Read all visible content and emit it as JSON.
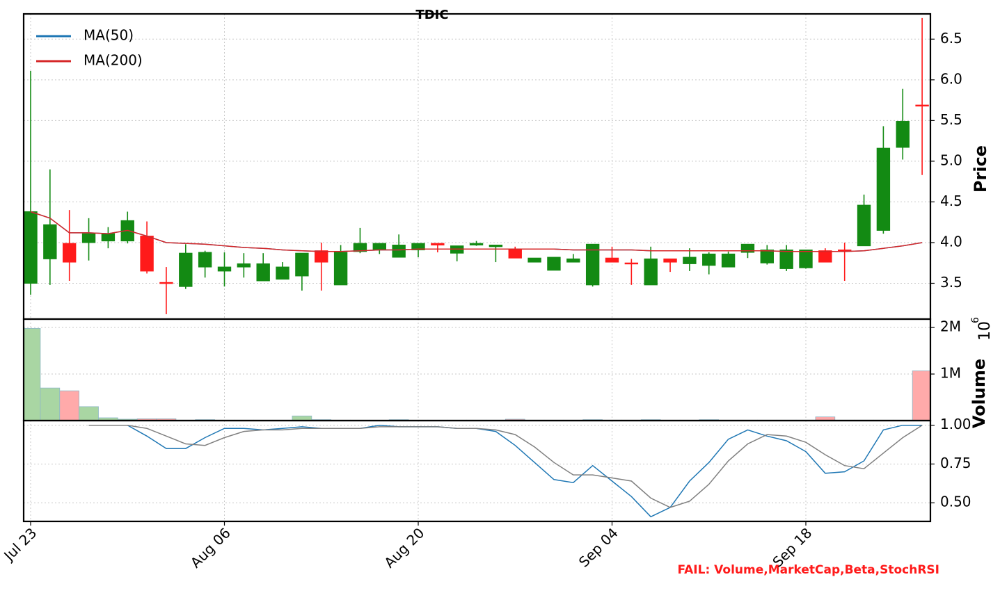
{
  "chart_data": [
    {
      "type": "candlestick",
      "title": "TDIC",
      "ylabel": "Price",
      "categories": [
        "Jul 23",
        null,
        null,
        null,
        null,
        null,
        null,
        null,
        null,
        null,
        "Aug 06",
        null,
        null,
        null,
        null,
        null,
        null,
        null,
        null,
        null,
        "Aug 20",
        null,
        null,
        null,
        null,
        null,
        null,
        null,
        null,
        null,
        "Sep 04",
        null,
        null,
        null,
        null,
        null,
        null,
        null,
        null,
        null,
        "Sep 18",
        null,
        null,
        null,
        null,
        null,
        null
      ],
      "open": [
        3.5,
        3.8,
        3.99,
        4.0,
        4.02,
        4.02,
        4.08,
        3.51,
        3.46,
        3.7,
        3.65,
        3.7,
        3.53,
        3.55,
        3.59,
        3.9,
        3.48,
        3.89,
        3.91,
        3.82,
        3.91,
        3.99,
        3.87,
        3.97,
        3.95,
        3.91,
        3.76,
        3.66,
        3.76,
        3.48,
        3.81,
        3.75,
        3.48,
        3.8,
        3.74,
        3.72,
        3.7,
        3.88,
        3.75,
        3.68,
        3.69,
        3.9,
        3.91,
        3.96,
        4.15,
        5.17,
        5.69
      ],
      "high": [
        6.11,
        4.9,
        4.4,
        4.3,
        4.19,
        4.38,
        4.26,
        3.7,
        3.98,
        3.9,
        3.88,
        3.87,
        3.87,
        3.76,
        3.87,
        4.0,
        3.97,
        4.18,
        3.99,
        4.1,
        3.99,
        3.99,
        3.96,
        4.02,
        3.97,
        3.95,
        3.81,
        3.82,
        3.86,
        3.98,
        3.95,
        3.8,
        3.95,
        3.8,
        3.93,
        3.88,
        3.89,
        3.98,
        3.97,
        3.97,
        3.91,
        3.93,
        4.0,
        4.59,
        5.43,
        5.89,
        6.76
      ],
      "low": [
        3.36,
        3.48,
        3.53,
        3.78,
        3.93,
        3.99,
        3.62,
        3.12,
        3.43,
        3.57,
        3.46,
        3.57,
        3.53,
        3.55,
        3.41,
        3.41,
        3.48,
        3.87,
        3.86,
        3.82,
        3.82,
        3.88,
        3.77,
        3.96,
        3.76,
        3.81,
        3.76,
        3.66,
        3.76,
        3.46,
        3.76,
        3.48,
        3.48,
        3.64,
        3.65,
        3.61,
        3.7,
        3.81,
        3.73,
        3.65,
        3.68,
        3.76,
        3.53,
        3.96,
        4.11,
        5.02,
        4.83
      ],
      "close": [
        4.38,
        4.22,
        3.76,
        4.11,
        4.11,
        4.27,
        3.65,
        3.5,
        3.87,
        3.88,
        3.7,
        3.74,
        3.74,
        3.7,
        3.87,
        3.76,
        3.88,
        3.99,
        3.99,
        3.97,
        3.99,
        3.97,
        3.96,
        3.99,
        3.97,
        3.81,
        3.81,
        3.82,
        3.8,
        3.98,
        3.76,
        3.74,
        3.8,
        3.76,
        3.82,
        3.86,
        3.86,
        3.98,
        3.91,
        3.91,
        3.91,
        3.76,
        3.9,
        4.46,
        5.16,
        5.49,
        5.68
      ],
      "up_color": "#138a13",
      "down_color": "#ff1a1a",
      "series": [
        {
          "name": "MA(50)",
          "color": "#1f77b4",
          "values": [
            4.38,
            4.3,
            4.12,
            4.12,
            4.11,
            4.15,
            4.08,
            4.0,
            3.99,
            3.98,
            3.96,
            3.94,
            3.93,
            3.91,
            3.9,
            3.89,
            3.89,
            3.9,
            3.91,
            3.91,
            3.92,
            3.92,
            3.92,
            3.92,
            3.92,
            3.92,
            3.92,
            3.92,
            3.91,
            3.91,
            3.91,
            3.91,
            3.9,
            3.9,
            3.9,
            3.9,
            3.9,
            3.9,
            3.9,
            3.89,
            3.89,
            3.89,
            3.89,
            3.9,
            3.93,
            3.96,
            4.0
          ]
        },
        {
          "name": "MA(200)",
          "color": "#d62728",
          "values": [
            4.38,
            4.3,
            4.12,
            4.12,
            4.11,
            4.15,
            4.08,
            4.0,
            3.99,
            3.98,
            3.96,
            3.94,
            3.93,
            3.91,
            3.9,
            3.89,
            3.89,
            3.9,
            3.91,
            3.91,
            3.92,
            3.92,
            3.92,
            3.92,
            3.92,
            3.92,
            3.92,
            3.92,
            3.91,
            3.91,
            3.91,
            3.91,
            3.9,
            3.9,
            3.9,
            3.9,
            3.9,
            3.9,
            3.9,
            3.89,
            3.89,
            3.89,
            3.89,
            3.9,
            3.93,
            3.96,
            4.0
          ]
        }
      ],
      "ylim": [
        3.06,
        6.81
      ],
      "yticks": [
        3.5,
        {
          "value": 4,
          "label": "4.0"
        },
        4.5,
        {
          "value": 5,
          "label": "5.0"
        },
        5.5,
        {
          "value": 6,
          "label": "6.0"
        },
        6.5
      ],
      "grid": true,
      "legend": "upper left",
      "annotation": "FAIL: Volume,MarketCap,Beta,StochRSI"
    },
    {
      "type": "bar",
      "ylabel": "Volume",
      "offset_text": "10",
      "offset_exponent": "6",
      "values": [
        1980000,
        700000,
        640000,
        300000,
        60000,
        30000,
        40000,
        40000,
        10000,
        20000,
        10000,
        10000,
        10000,
        10000,
        100000,
        20000,
        10000,
        10000,
        10000,
        20000,
        10000,
        10000,
        10000,
        10000,
        10000,
        30000,
        10000,
        10000,
        10000,
        20000,
        10000,
        10000,
        20000,
        10000,
        10000,
        20000,
        10000,
        10000,
        10000,
        10000,
        10000,
        80000,
        10000,
        10000,
        10000,
        10000,
        1070000
      ],
      "up_color": "#a9d6a3",
      "down_color": "#ffaaaa",
      "ylim": [
        0,
        2180000
      ],
      "yticks": [
        {
          "value": 1000000,
          "label": "1M"
        },
        {
          "value": 2000000,
          "label": "2M"
        }
      ],
      "grid": true
    },
    {
      "type": "line",
      "series": [
        {
          "color": "#1f77b4",
          "values": [
            null,
            null,
            null,
            1.0,
            1.0,
            1.0,
            0.93,
            0.85,
            0.85,
            0.92,
            0.98,
            0.98,
            0.97,
            0.98,
            0.99,
            0.98,
            0.98,
            0.98,
            1.0,
            0.99,
            0.99,
            0.99,
            0.98,
            0.98,
            0.96,
            0.87,
            0.76,
            0.65,
            0.63,
            0.74,
            0.64,
            0.54,
            0.41,
            0.47,
            0.64,
            0.76,
            0.91,
            0.97,
            0.93,
            0.9,
            0.83,
            0.69,
            0.7,
            0.77,
            0.97,
            1.0,
            1.0
          ]
        },
        {
          "color": "#808080",
          "values": [
            null,
            null,
            null,
            1.0,
            1.0,
            1.0,
            0.98,
            0.93,
            0.88,
            0.87,
            0.92,
            0.96,
            0.97,
            0.97,
            0.98,
            0.98,
            0.98,
            0.98,
            0.99,
            0.99,
            0.99,
            0.99,
            0.98,
            0.98,
            0.97,
            0.94,
            0.86,
            0.76,
            0.68,
            0.68,
            0.66,
            0.64,
            0.53,
            0.47,
            0.51,
            0.62,
            0.77,
            0.88,
            0.94,
            0.93,
            0.89,
            0.81,
            0.74,
            0.72,
            0.82,
            0.92,
            1.0
          ]
        }
      ],
      "ylim": [
        0.38,
        1.03
      ],
      "yticks": [
        {
          "value": 0.5,
          "label": "0.50"
        },
        {
          "value": 0.75,
          "label": "0.75"
        },
        {
          "value": 1,
          "label": "1.00"
        }
      ],
      "grid": true
    }
  ]
}
